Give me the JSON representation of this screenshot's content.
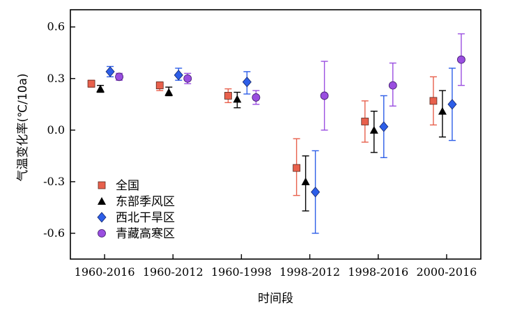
{
  "chart_data": {
    "type": "scatter",
    "xlabel": "时间段",
    "ylabel": "气温变化率(℃/10a)",
    "ylim": [
      -0.75,
      0.7
    ],
    "yticks": [
      -0.6,
      -0.3,
      0.0,
      0.3,
      0.6
    ],
    "ytick_labels": [
      "-0.6",
      "-0.3",
      "0.0",
      "0.3",
      "0.6"
    ],
    "categories": [
      "1960-2016",
      "1960-2012",
      "1960-1998",
      "1998-2012",
      "1998-2016",
      "2000-2016"
    ],
    "grid": false,
    "legend_position": "bottom-left",
    "series": [
      {
        "name": "全国",
        "marker": "square",
        "color": "#e8604c",
        "values": [
          0.27,
          0.26,
          0.2,
          -0.22,
          0.05,
          0.17
        ],
        "err_low": [
          0.25,
          0.23,
          0.16,
          -0.38,
          -0.07,
          0.03
        ],
        "err_high": [
          0.29,
          0.28,
          0.24,
          -0.05,
          0.17,
          0.31
        ]
      },
      {
        "name": "东部季风区",
        "marker": "triangle",
        "color": "#000000",
        "values": [
          0.24,
          0.22,
          0.18,
          -0.3,
          0.0,
          0.11
        ],
        "err_low": [
          0.22,
          0.2,
          0.13,
          -0.47,
          -0.13,
          -0.04
        ],
        "err_high": [
          0.26,
          0.25,
          0.22,
          -0.15,
          0.11,
          0.23
        ]
      },
      {
        "name": "西北干旱区",
        "marker": "diamond",
        "color": "#2d5ee8",
        "values": [
          0.34,
          0.32,
          0.28,
          -0.36,
          0.02,
          0.15
        ],
        "err_low": [
          0.31,
          0.29,
          0.21,
          -0.6,
          -0.16,
          -0.06
        ],
        "err_high": [
          0.37,
          0.36,
          0.34,
          -0.12,
          0.2,
          0.36
        ]
      },
      {
        "name": "青藏高寒区",
        "marker": "circle",
        "color": "#9a4ee0",
        "values": [
          0.31,
          0.3,
          0.19,
          0.2,
          0.26,
          0.41
        ],
        "err_low": [
          0.29,
          0.27,
          0.15,
          0.0,
          0.14,
          0.26
        ],
        "err_high": [
          0.33,
          0.33,
          0.23,
          0.4,
          0.39,
          0.56
        ]
      }
    ]
  }
}
